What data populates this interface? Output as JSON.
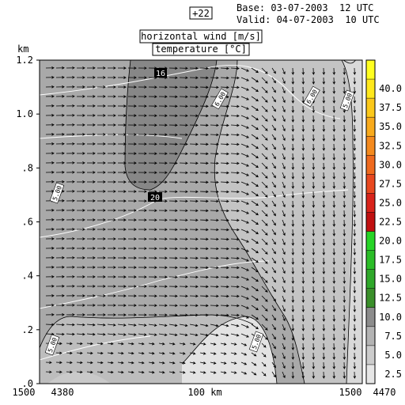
{
  "header": {
    "forecast_hour": "+22",
    "base_label": "Base: 03-07-2003  12 UTC",
    "valid_label": "Valid: 04-07-2003  10 UTC"
  },
  "chart_data": {
    "type": "cross-section",
    "title": "horizontal wind [m/s]",
    "subtitle": "temperature [°C]",
    "y_unit": "km",
    "ylim": [
      0,
      1.2
    ],
    "y_ticks": [
      {
        "value": 0,
        "label": ".0"
      },
      {
        "value": 0.2,
        "label": ".2"
      },
      {
        "value": 0.4,
        "label": ".4"
      },
      {
        "value": 0.6,
        "label": ".6"
      },
      {
        "value": 0.8,
        "label": ".8"
      },
      {
        "value": 1.0,
        "label": "1.0"
      },
      {
        "value": 1.2,
        "label": "1.2"
      }
    ],
    "x_labels": {
      "left_edge": "1500",
      "left_start": "4380",
      "center": "100 km",
      "right_end": "1500",
      "right_edge": "4470"
    },
    "colorbar": {
      "levels": [
        "2.5",
        "5.0",
        "7.5",
        "10.0",
        "12.5",
        "15.0",
        "17.5",
        "20.0",
        "22.5",
        "25.0",
        "27.5",
        "30.0",
        "32.5",
        "35.0",
        "37.5",
        "40.0"
      ],
      "colors": [
        "#e6e6e6",
        "#cccccc",
        "#b3b3b3",
        "#8c8c8c",
        "#3a8f2a",
        "#2fa82a",
        "#2bbd27",
        "#26d426",
        "#c01010",
        "#d8231a",
        "#e8481f",
        "#ef6a1e",
        "#f48a1e",
        "#f8aa1c",
        "#fbc81a",
        "#ffe81c",
        "#ffff20"
      ]
    },
    "isotherm_labels": [
      "16",
      "20"
    ],
    "wind_speed_labels": [
      "5.00",
      "6.00",
      "6.00",
      "5.00",
      "5.00",
      "5.00"
    ]
  }
}
